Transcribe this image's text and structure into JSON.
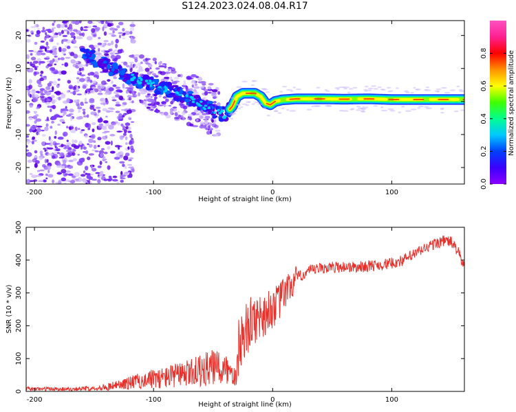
{
  "title": "S124.2023.024.08.04.R17",
  "colors": {
    "snr_line": "#e8302a",
    "frame": "#000000",
    "colorbar": [
      "#8b00ff",
      "#3b00ff",
      "#0040ff",
      "#00c8ff",
      "#00ff90",
      "#40ff00",
      "#ffff00",
      "#ff9000",
      "#ff0000",
      "#ff2090",
      "#ff50c0"
    ]
  },
  "chart_data": [
    {
      "type": "heatmap",
      "title": "S124.2023.024.08.04.R17",
      "xlabel": "Height of straight line (km)",
      "ylabel": "Frequency (Hz)",
      "xlim": [
        -207,
        161
      ],
      "ylim": [
        -25,
        24.5
      ],
      "xticks": [
        -200,
        -100,
        0,
        100
      ],
      "yticks": [
        20,
        10,
        0,
        -10,
        -20
      ],
      "colorbar": {
        "label": "Normalized spectral amplitude",
        "range": [
          0,
          1
        ],
        "ticks": [
          "0.0",
          "0.2",
          "0.4",
          "0.6",
          "0.8"
        ]
      },
      "ridge": {
        "x": [
          -125,
          -112,
          -100,
          -88,
          -76,
          -64,
          -54,
          -46,
          -40,
          -34,
          -30,
          -25,
          -20,
          -15,
          -10,
          -6,
          -2,
          2,
          8,
          20,
          40,
          60,
          80,
          100,
          120,
          140,
          161
        ],
        "y": [
          8,
          6.5,
          5,
          3.5,
          2,
          0,
          -2,
          -3.5,
          -4,
          -1.5,
          1.5,
          2.5,
          2.5,
          2.5,
          1.5,
          -0.5,
          -1,
          0,
          0.5,
          0.8,
          0.8,
          0.7,
          0.8,
          0.6,
          0.6,
          0.6,
          0.6
        ]
      },
      "grid": false,
      "legend": "none"
    },
    {
      "type": "line",
      "xlabel": "Height of straight line (km)",
      "ylabel": "SNR (10 * v/v)",
      "xlim": [
        -207,
        161
      ],
      "ylim": [
        0,
        500
      ],
      "xticks": [
        -200,
        -100,
        0,
        100
      ],
      "yticks": [
        0,
        100,
        200,
        300,
        400,
        500
      ],
      "series": [
        {
          "x": [
            -207,
            -190,
            -170,
            -150,
            -140,
            -130,
            -120,
            -110,
            -100,
            -90,
            -80,
            -70,
            -60,
            -50,
            -40,
            -35,
            -30,
            -28,
            -25,
            -20,
            -15,
            -10,
            -5,
            0,
            5,
            10,
            15,
            20,
            25,
            30,
            40,
            50,
            60,
            70,
            80,
            90,
            100,
            110,
            120,
            130,
            140,
            145,
            150,
            155,
            161
          ],
          "values": [
            8,
            8,
            8,
            10,
            14,
            20,
            28,
            35,
            40,
            45,
            52,
            58,
            68,
            75,
            70,
            60,
            75,
            150,
            170,
            200,
            220,
            230,
            240,
            255,
            270,
            300,
            320,
            345,
            355,
            365,
            375,
            378,
            380,
            378,
            382,
            385,
            390,
            400,
            420,
            440,
            455,
            460,
            455,
            430,
            380
          ]
        }
      ],
      "grid": false,
      "legend": "none"
    }
  ]
}
